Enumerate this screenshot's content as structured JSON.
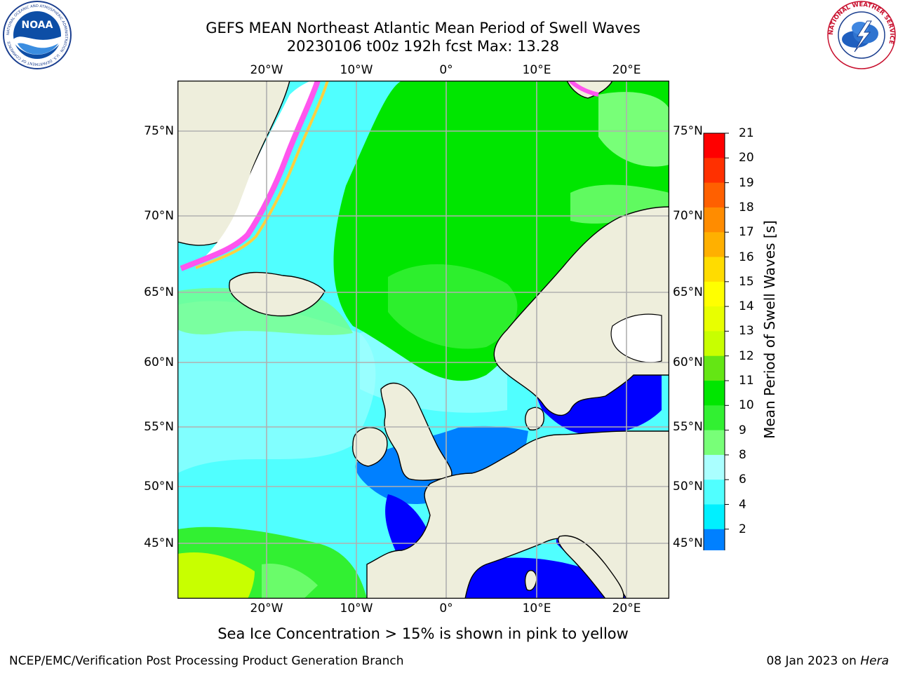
{
  "title": {
    "line1": "GEFS MEAN Northeast Atlantic Mean Period of Swell Waves",
    "line2": "20230106 t00z 192h fcst   Max: 13.28"
  },
  "logos": {
    "left": {
      "text": "NOAA",
      "ring_text": "NATIONAL OCEANIC AND ATMOSPHERIC ADMINISTRATION · U.S. DEPARTMENT OF COMMERCE"
    },
    "right": {
      "ring_text": "NATIONAL WEATHER SERVICE"
    }
  },
  "map": {
    "lon_labels": [
      "20°W",
      "10°W",
      "0°",
      "10°E",
      "20°E"
    ],
    "lon_labels_bottom": [
      "20°W",
      "10°W",
      "0°",
      "10°E",
      "20°E"
    ],
    "lat_labels": [
      "75°N",
      "70°N",
      "65°N",
      "60°N",
      "55°N",
      "50°N",
      "45°N"
    ],
    "land_color": "#eeeedc",
    "coast_color": "#000000",
    "grid_color": "#b0b0b0"
  },
  "colorbar": {
    "label": "Mean Period of Swell Waves [s]",
    "ticks": [
      "21",
      "20",
      "19",
      "18",
      "17",
      "16",
      "15",
      "14",
      "13",
      "12",
      "11",
      "10",
      "9",
      "8",
      "6",
      "4",
      "2"
    ],
    "colors": [
      "#ff0000",
      "#ff3000",
      "#ff6000",
      "#ff8c00",
      "#ffb000",
      "#ffdc00",
      "#ffff00",
      "#e8ff00",
      "#c8ff00",
      "#64e614",
      "#00e600",
      "#32f032",
      "#78ff78",
      "#aaffff",
      "#50ffff",
      "#00f0ff",
      "#0080ff"
    ],
    "extend_color": "#0000ff"
  },
  "note": "Sea Ice Concentration > 15% is shown in pink to yellow",
  "footer": {
    "left": "NCEP/EMC/Verification Post Processing Product Generation Branch",
    "date": "08 Jan 2023 on ",
    "host": "Hera"
  }
}
